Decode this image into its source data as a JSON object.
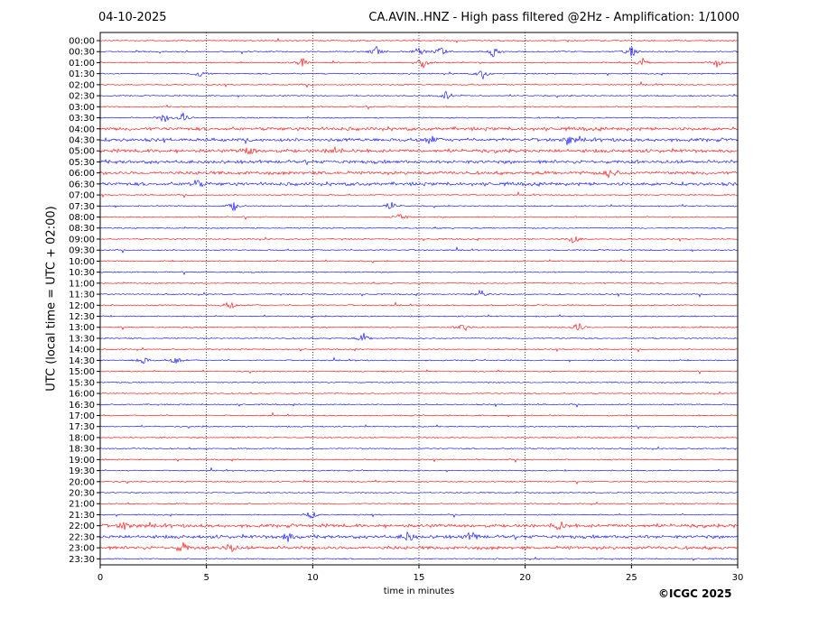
{
  "header": {
    "date": "04-10-2025",
    "title": "CA.AVIN..HNZ - High pass filtered @2Hz - Amplification: 1/1000"
  },
  "footer": {
    "copyright": "©ICGC 2025"
  },
  "chart_data": {
    "type": "line",
    "title": "CA.AVIN..HNZ - High pass filtered @2Hz - Amplification: 1/1000",
    "xlabel": "time in minutes",
    "ylabel": "UTC (local time = UTC + 02:00)",
    "xlim": [
      0,
      30
    ],
    "xticks": [
      0,
      5,
      10,
      15,
      20,
      25,
      30
    ],
    "grid_x": true,
    "rows": [
      "00:00",
      "00:30",
      "01:00",
      "01:30",
      "02:00",
      "02:30",
      "03:00",
      "03:30",
      "04:00",
      "04:30",
      "05:00",
      "05:30",
      "06:00",
      "06:30",
      "07:00",
      "07:30",
      "08:00",
      "08:30",
      "09:00",
      "09:30",
      "10:00",
      "10:30",
      "11:00",
      "11:30",
      "12:00",
      "12:30",
      "13:00",
      "13:30",
      "14:00",
      "14:30",
      "15:00",
      "15:30",
      "16:00",
      "16:30",
      "17:00",
      "17:30",
      "18:00",
      "18:30",
      "19:00",
      "19:30",
      "20:00",
      "20:30",
      "21:00",
      "21:30",
      "22:00",
      "22:30",
      "23:00",
      "23:30"
    ],
    "trace_colors": [
      "#ff0000",
      "#0000ff"
    ],
    "events": [
      {
        "row": "00:30",
        "minutes": [
          13,
          15,
          16,
          18.5,
          25
        ]
      },
      {
        "row": "01:00",
        "minutes": [
          9.5,
          15.2,
          25.5,
          29
        ]
      },
      {
        "row": "01:30",
        "minutes": [
          4.7,
          18
        ]
      },
      {
        "row": "02:30",
        "minutes": [
          16.3
        ]
      },
      {
        "row": "03:30",
        "minutes": [
          3,
          3.9
        ]
      },
      {
        "row": "04:30",
        "minutes": [
          15.5,
          22
        ]
      },
      {
        "row": "05:00",
        "minutes": [
          7,
          11
        ]
      },
      {
        "row": "06:00",
        "minutes": [
          24
        ]
      },
      {
        "row": "06:30",
        "minutes": [
          4.5
        ]
      },
      {
        "row": "07:30",
        "minutes": [
          6.3,
          13.7
        ]
      },
      {
        "row": "08:00",
        "minutes": [
          14.1
        ]
      },
      {
        "row": "09:00",
        "minutes": [
          22.3
        ]
      },
      {
        "row": "11:30",
        "minutes": [
          17.9
        ]
      },
      {
        "row": "12:00",
        "minutes": [
          6.1
        ]
      },
      {
        "row": "13:00",
        "minutes": [
          17.1,
          22.5
        ]
      },
      {
        "row": "13:30",
        "minutes": [
          12.4
        ]
      },
      {
        "row": "14:30",
        "minutes": [
          2,
          3.6
        ]
      },
      {
        "row": "21:30",
        "minutes": [
          9.9
        ]
      },
      {
        "row": "22:00",
        "minutes": [
          1.2,
          21.6
        ]
      },
      {
        "row": "22:30",
        "minutes": [
          8.8,
          14.5,
          17.5
        ]
      },
      {
        "row": "23:00",
        "minutes": [
          6.1,
          3.9
        ]
      }
    ]
  }
}
